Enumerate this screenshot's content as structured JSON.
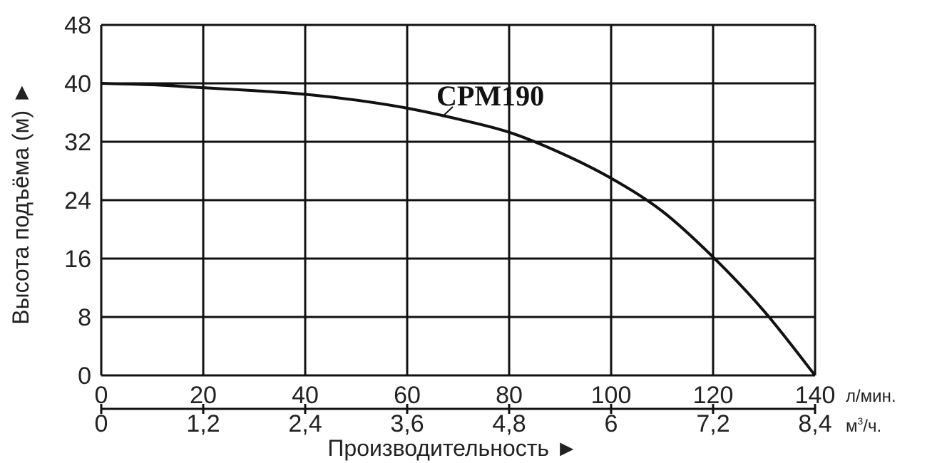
{
  "chart_data": {
    "type": "line",
    "x": [
      0,
      20,
      40,
      60,
      80,
      100,
      120,
      140
    ],
    "series": [
      {
        "name": "CPM190",
        "x": [
          0,
          10,
          20,
          30,
          40,
          50,
          60,
          70,
          80,
          90,
          100,
          110,
          120,
          130,
          140
        ],
        "values": [
          40,
          39.8,
          39.4,
          39.0,
          38.5,
          37.7,
          36.6,
          35.1,
          33.3,
          30.5,
          27.0,
          22.5,
          16.2,
          8.8,
          0
        ]
      }
    ],
    "xlim": [
      0,
      140
    ],
    "ylim": [
      0,
      48
    ],
    "x_ticks": [
      "0",
      "20",
      "40",
      "60",
      "80",
      "100",
      "120",
      "140"
    ],
    "x2_ticks": [
      "0",
      "1,2",
      "2,4",
      "3,6",
      "4,8",
      "6",
      "7,2",
      "8,4"
    ],
    "y_ticks": [
      "0",
      "8",
      "16",
      "24",
      "32",
      "40",
      "48"
    ],
    "x_unit": "л/мин.",
    "x2_unit_main": "м",
    "x2_unit_sup": "3",
    "x2_unit_tail": "/ч.",
    "xlabel": "Производительность ►",
    "ylabel": "Высота подъёма (м) ►",
    "grid": true,
    "colors": {
      "line": "#111111",
      "grid": "#111111"
    }
  }
}
